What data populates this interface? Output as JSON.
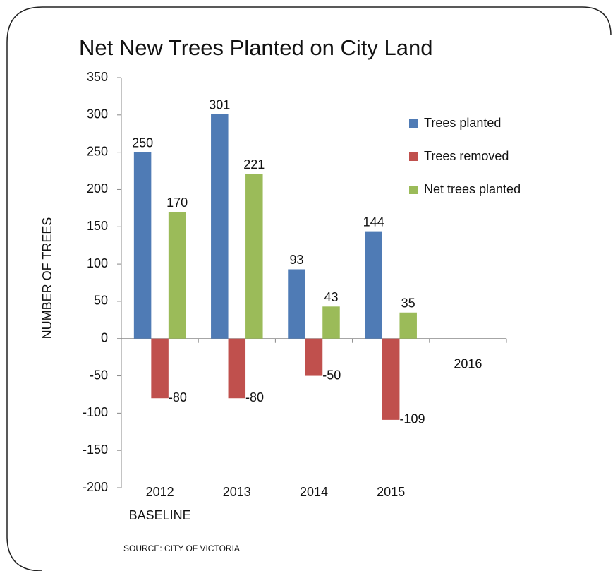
{
  "chart_data": {
    "type": "bar",
    "title": "Net New Trees Planted on City Land",
    "y_label": "NUMBER OF TREES",
    "source": "SOURCE: CITY OF VICTORIA",
    "annotations": [
      "BASELINE"
    ],
    "categories": [
      "2012",
      "2013",
      "2014",
      "2015",
      "2016"
    ],
    "series": [
      {
        "name": "Trees planted",
        "color": "#4f7bb5",
        "values": [
          250,
          301,
          93,
          144,
          null
        ]
      },
      {
        "name": "Trees removed",
        "color": "#c0504d",
        "values": [
          -80,
          -80,
          -50,
          -109,
          null
        ]
      },
      {
        "name": "Net trees planted",
        "color": "#9bbb59",
        "values": [
          170,
          221,
          43,
          35,
          null
        ]
      }
    ],
    "ylim": [
      -200,
      350
    ],
    "yticks": [
      -200,
      -150,
      -100,
      -50,
      0,
      50,
      100,
      150,
      200,
      250,
      300,
      350
    ],
    "grid": false,
    "legend": "upper right"
  }
}
